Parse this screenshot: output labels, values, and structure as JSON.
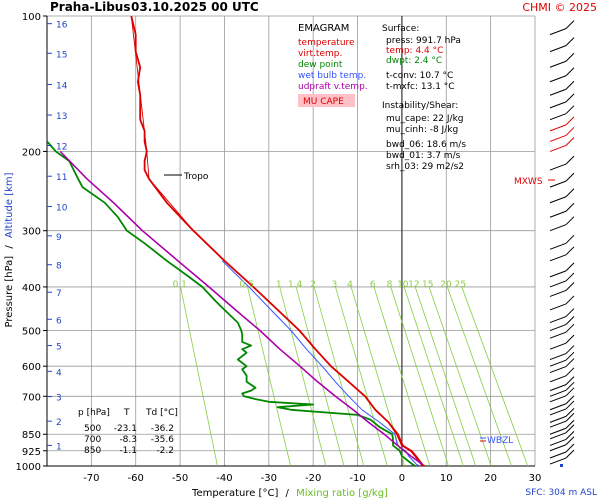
{
  "header": {
    "station": "Praha-Libus",
    "datetime": "03.10.2025 00 UTC",
    "copyright": "CHMI © 2025"
  },
  "legend": {
    "title": "EMAGRAM",
    "items": [
      {
        "label": "temperature",
        "color": "#dd0000"
      },
      {
        "label": "virt.temp.",
        "color": "#dd0000"
      },
      {
        "label": "dew point",
        "color": "#008800"
      },
      {
        "label": "wet bulb temp.",
        "color": "#3355ff"
      },
      {
        "label": "udpraft v.temp.",
        "color": "#aa00aa"
      }
    ],
    "mu_cape": "MU CAPE"
  },
  "surface": {
    "title": "Surface:",
    "press": "press: 991.7 hPa",
    "temp": "temp: 4.4 °C",
    "dwpt": "dwpt: 2.4 °C",
    "tconv": "t-conv: 10.7 °C",
    "tmxfc": "t-mxfc: 13.1 °C"
  },
  "instability": {
    "title": "Instability/Shear:",
    "mu_cape": "mu_cape: 22 J/kg",
    "mu_cinh": "mu_cinh: -8 J/kg",
    "bwd_06": "bwd_06: 18.6 m/s",
    "bwd_01": "bwd_01: 3.7 m/s",
    "srh_03": "srh_03: 29 m2/s2"
  },
  "table": {
    "headers": [
      "p [hPa]",
      "T",
      "Td [°C]"
    ],
    "rows": [
      [
        "500",
        "-23.1",
        "-36.2"
      ],
      [
        "700",
        "-8.3",
        "-35.6"
      ],
      [
        "850",
        "-1.1",
        "-2.2"
      ]
    ]
  },
  "annotations": {
    "tropo": "Tropo",
    "mxws": "MXWS",
    "wbzl": "WBZL",
    "sfc": "SFC: 304 m ASL"
  },
  "axes": {
    "ylabel_left": "Pressure [hPa]",
    "ylabel_sep": "/",
    "ylabel_right": "Altitude [km]",
    "xlabel_left": "Temperature [°C]",
    "xlabel_sep": "/",
    "xlabel_right": "Mixing ratio [g/kg]"
  },
  "colors": {
    "temperature": "#dd0000",
    "dewpoint": "#008800",
    "wetbulb": "#3355ff",
    "updraft": "#aa00aa",
    "mixing": "#88cc44",
    "altitude": "#2244cc",
    "grid": "#999999"
  },
  "chart_data": {
    "type": "line",
    "title": "Praha-Libus 03.10.2025 00 UTC",
    "xlabel": "Temperature [°C] / Mixing ratio [g/kg]",
    "ylabel": "Pressure [hPa] / Altitude [km]",
    "xlim": [
      -80,
      30
    ],
    "ylim": [
      1000,
      100
    ],
    "yscale": "log",
    "x_ticks": [
      -70,
      -60,
      -50,
      -40,
      -30,
      -20,
      -10,
      0,
      10,
      20,
      30
    ],
    "pressure_ticks": [
      1000,
      925,
      850,
      700,
      600,
      500,
      400,
      300,
      200,
      100
    ],
    "altitude_ticks": [
      {
        "km": 1,
        "p": 900
      },
      {
        "km": 2,
        "p": 795
      },
      {
        "km": 3,
        "p": 701
      },
      {
        "km": 4,
        "p": 616
      },
      {
        "km": 5,
        "p": 540
      },
      {
        "km": 6,
        "p": 472
      },
      {
        "km": 7,
        "p": 411
      },
      {
        "km": 8,
        "p": 357
      },
      {
        "km": 9,
        "p": 308
      },
      {
        "km": 10,
        "p": 265
      },
      {
        "km": 11,
        "p": 227
      },
      {
        "km": 12,
        "p": 194
      },
      {
        "km": 13,
        "p": 166
      },
      {
        "km": 14,
        "p": 142
      },
      {
        "km": 15,
        "p": 121
      },
      {
        "km": 16,
        "p": 104
      }
    ],
    "mixing_ratio_labels": [
      "0.1",
      "0.5",
      "1",
      "1.4",
      "2",
      "3",
      "4",
      "6",
      "8",
      "10",
      "12",
      "15",
      "20",
      "25"
    ],
    "series": [
      {
        "name": "temperature",
        "points": [
          [
            1000,
            5
          ],
          [
            991.7,
            4.4
          ],
          [
            950,
            3
          ],
          [
            925,
            2
          ],
          [
            900,
            0
          ],
          [
            850,
            -1.1
          ],
          [
            800,
            -3
          ],
          [
            750,
            -6
          ],
          [
            700,
            -8.3
          ],
          [
            650,
            -12
          ],
          [
            600,
            -16
          ],
          [
            550,
            -19.5
          ],
          [
            500,
            -23.1
          ],
          [
            450,
            -28
          ],
          [
            400,
            -33.5
          ],
          [
            350,
            -40
          ],
          [
            300,
            -47
          ],
          [
            260,
            -53
          ],
          [
            230,
            -57
          ],
          [
            220,
            -58
          ],
          [
            210,
            -58
          ],
          [
            200,
            -57.5
          ],
          [
            190,
            -58
          ],
          [
            180,
            -58
          ],
          [
            170,
            -59
          ],
          [
            150,
            -59
          ],
          [
            140,
            -59.5
          ],
          [
            130,
            -59
          ],
          [
            120,
            -60
          ],
          [
            110,
            -60
          ],
          [
            100,
            -61
          ]
        ]
      },
      {
        "name": "virt.temp.",
        "points": [
          [
            1000,
            5.3
          ],
          [
            991.7,
            4.7
          ],
          [
            950,
            3.3
          ],
          [
            925,
            2.3
          ],
          [
            900,
            0.3
          ],
          [
            850,
            -0.8
          ],
          [
            800,
            -2.9
          ],
          [
            750,
            -5.9
          ],
          [
            700,
            -8.2
          ],
          [
            650,
            -11.9
          ],
          [
            600,
            -15.9
          ],
          [
            550,
            -19.4
          ],
          [
            500,
            -23
          ],
          [
            450,
            -27.9
          ],
          [
            400,
            -33.4
          ],
          [
            350,
            -40
          ],
          [
            300,
            -47
          ],
          [
            230,
            -57
          ],
          [
            200,
            -57.5
          ],
          [
            100,
            -61
          ]
        ]
      },
      {
        "name": "dew point",
        "points": [
          [
            1000,
            3
          ],
          [
            991.7,
            2.4
          ],
          [
            950,
            0
          ],
          [
            925,
            -0.5
          ],
          [
            900,
            -2
          ],
          [
            870,
            -2
          ],
          [
            850,
            -2.2
          ],
          [
            820,
            -5
          ],
          [
            790,
            -7
          ],
          [
            770,
            -10
          ],
          [
            750,
            -25
          ],
          [
            740,
            -28
          ],
          [
            730,
            -20
          ],
          [
            720,
            -30
          ],
          [
            710,
            -33
          ],
          [
            700,
            -35.6
          ],
          [
            690,
            -36
          ],
          [
            680,
            -34
          ],
          [
            670,
            -33
          ],
          [
            650,
            -35
          ],
          [
            630,
            -35
          ],
          [
            610,
            -36
          ],
          [
            600,
            -35
          ],
          [
            580,
            -37
          ],
          [
            560,
            -35
          ],
          [
            550,
            -36
          ],
          [
            540,
            -34
          ],
          [
            530,
            -36
          ],
          [
            520,
            -36
          ],
          [
            510,
            -36
          ],
          [
            500,
            -36.2
          ],
          [
            480,
            -37
          ],
          [
            450,
            -40
          ],
          [
            430,
            -42
          ],
          [
            400,
            -45
          ],
          [
            380,
            -48
          ],
          [
            350,
            -53
          ],
          [
            320,
            -58
          ],
          [
            300,
            -62
          ],
          [
            280,
            -64
          ],
          [
            260,
            -67
          ],
          [
            240,
            -72
          ],
          [
            230,
            -73
          ],
          [
            210,
            -75
          ],
          [
            200,
            -78
          ],
          [
            190,
            -80
          ]
        ]
      },
      {
        "name": "wet bulb temp.",
        "points": [
          [
            1000,
            4
          ],
          [
            991.7,
            3.3
          ],
          [
            950,
            1.5
          ],
          [
            925,
            0.8
          ],
          [
            900,
            -1
          ],
          [
            850,
            -1.6
          ],
          [
            800,
            -5
          ],
          [
            750,
            -9
          ],
          [
            700,
            -12
          ],
          [
            650,
            -15
          ],
          [
            600,
            -18
          ],
          [
            550,
            -21.5
          ],
          [
            500,
            -25
          ],
          [
            450,
            -29.5
          ],
          [
            400,
            -34.5
          ],
          [
            350,
            -40.5
          ]
        ]
      },
      {
        "name": "udpraft v.temp.",
        "points": [
          [
            991.7,
            4.6
          ],
          [
            950,
            2
          ],
          [
            925,
            0.5
          ],
          [
            900,
            -1
          ],
          [
            850,
            -4
          ],
          [
            800,
            -7.5
          ],
          [
            750,
            -11
          ],
          [
            700,
            -15
          ],
          [
            650,
            -19
          ],
          [
            600,
            -23
          ],
          [
            550,
            -27.5
          ],
          [
            500,
            -32
          ],
          [
            450,
            -37.5
          ],
          [
            400,
            -43.5
          ],
          [
            350,
            -50.5
          ],
          [
            300,
            -58.5
          ],
          [
            260,
            -65
          ],
          [
            230,
            -71
          ],
          [
            200,
            -77
          ]
        ]
      }
    ]
  }
}
